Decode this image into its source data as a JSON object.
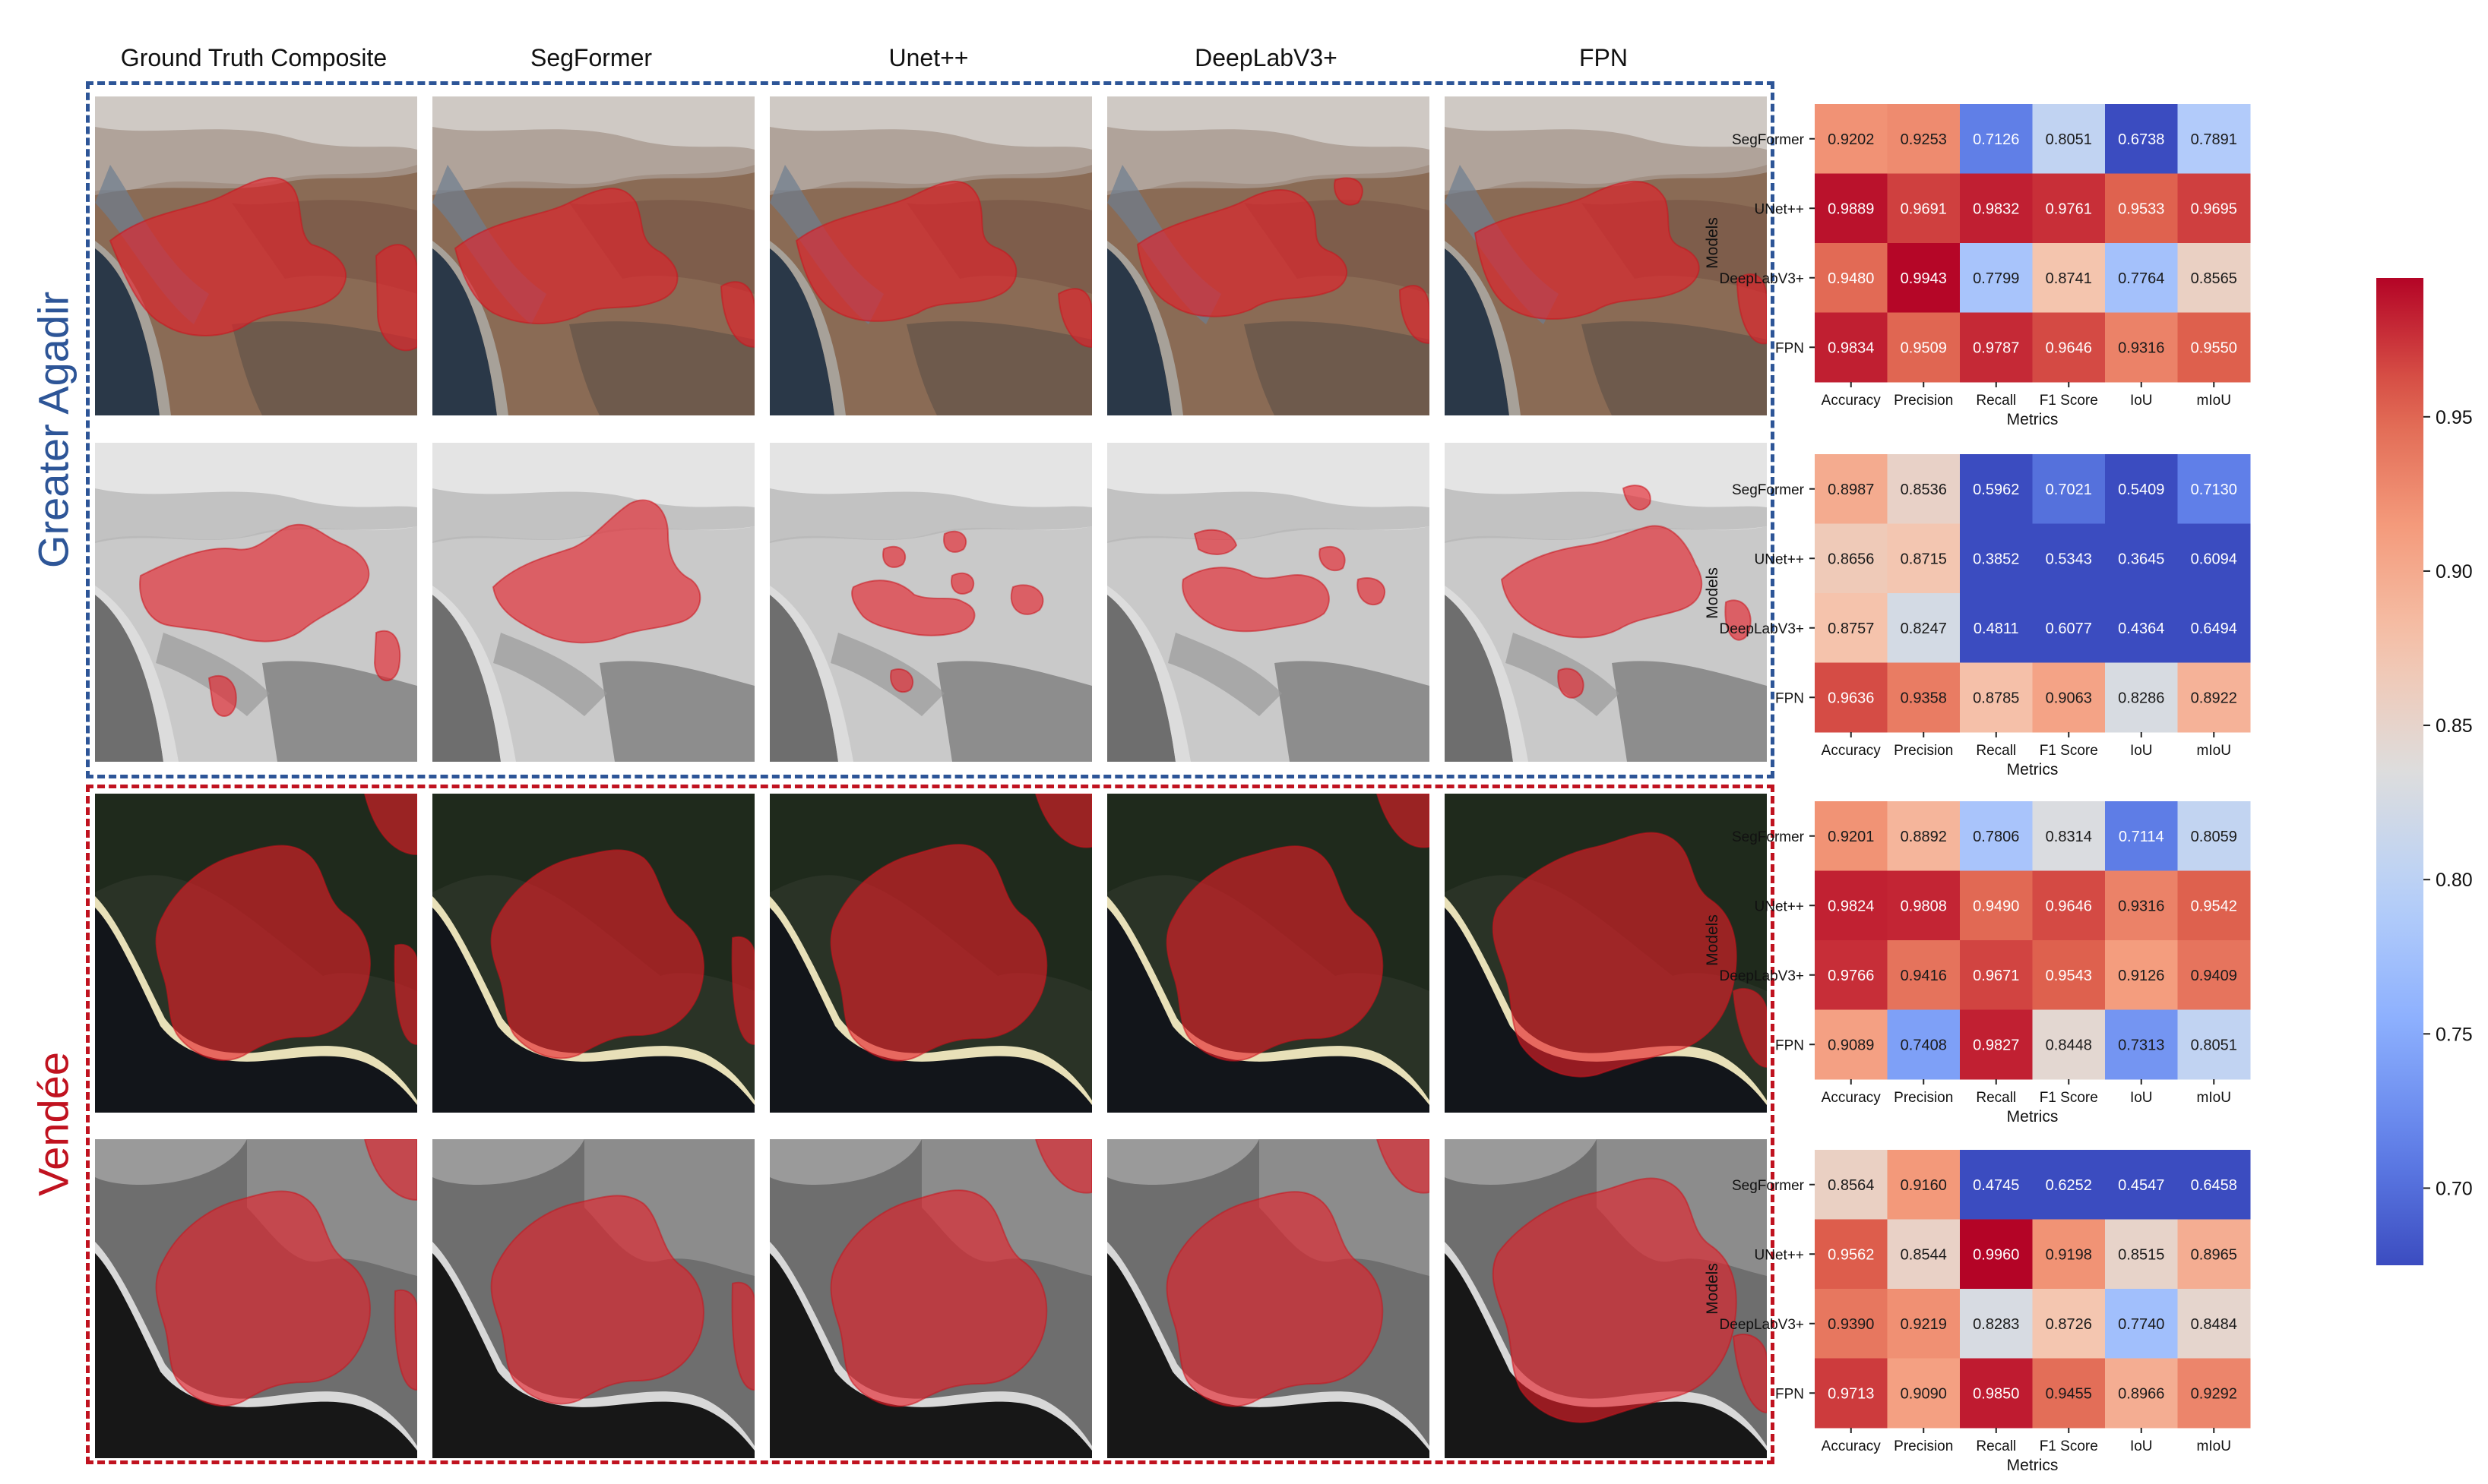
{
  "columns": [
    "Ground Truth Composite",
    "SegFormer",
    "Unet++",
    "DeepLabV3+",
    "FPN"
  ],
  "regions": [
    {
      "name": "Greater Agadir",
      "color": "#2d5597"
    },
    {
      "name": "Vendée",
      "color": "#c0121f"
    }
  ],
  "chart_data": [
    {
      "type": "heatmap",
      "region": "Greater Agadir",
      "imagery": "color composite",
      "rows": [
        "SegFormer",
        "UNet++",
        "DeepLabV3+",
        "FPN"
      ],
      "columns": [
        "Accuracy",
        "Precision",
        "Recall",
        "F1 Score",
        "IoU",
        "mIoU"
      ],
      "xlabel": "Metrics",
      "ylabel": "Models",
      "values": [
        [
          0.9202,
          0.9253,
          0.7126,
          0.8051,
          0.6738,
          0.7891
        ],
        [
          0.9889,
          0.9691,
          0.9832,
          0.9761,
          0.9533,
          0.9695
        ],
        [
          0.948,
          0.9943,
          0.7799,
          0.8741,
          0.7764,
          0.8565
        ],
        [
          0.9834,
          0.9509,
          0.9787,
          0.9646,
          0.9316,
          0.955
        ]
      ]
    },
    {
      "type": "heatmap",
      "region": "Greater Agadir",
      "imagery": "grayscale",
      "rows": [
        "SegFormer",
        "UNet++",
        "DeepLabV3+",
        "FPN"
      ],
      "columns": [
        "Accuracy",
        "Precision",
        "Recall",
        "F1 Score",
        "IoU",
        "mIoU"
      ],
      "xlabel": "Metrics",
      "ylabel": "Models",
      "values": [
        [
          0.8987,
          0.8536,
          0.5962,
          0.7021,
          0.5409,
          0.713
        ],
        [
          0.8656,
          0.8715,
          0.3852,
          0.5343,
          0.3645,
          0.6094
        ],
        [
          0.8757,
          0.8247,
          0.4811,
          0.6077,
          0.4364,
          0.6494
        ],
        [
          0.9636,
          0.9358,
          0.8785,
          0.9063,
          0.8286,
          0.8922
        ]
      ]
    },
    {
      "type": "heatmap",
      "region": "Vendée",
      "imagery": "color composite",
      "rows": [
        "SegFormer",
        "UNet++",
        "DeepLabV3+",
        "FPN"
      ],
      "columns": [
        "Accuracy",
        "Precision",
        "Recall",
        "F1 Score",
        "IoU",
        "mIoU"
      ],
      "xlabel": "Metrics",
      "ylabel": "Models",
      "values": [
        [
          0.9201,
          0.8892,
          0.7806,
          0.8314,
          0.7114,
          0.8059
        ],
        [
          0.9824,
          0.9808,
          0.949,
          0.9646,
          0.9316,
          0.9542
        ],
        [
          0.9766,
          0.9416,
          0.9671,
          0.9543,
          0.9126,
          0.9409
        ],
        [
          0.9089,
          0.7408,
          0.9827,
          0.8448,
          0.7313,
          0.8051
        ]
      ]
    },
    {
      "type": "heatmap",
      "region": "Vendée",
      "imagery": "grayscale",
      "rows": [
        "SegFormer",
        "UNet++",
        "DeepLabV3+",
        "FPN"
      ],
      "columns": [
        "Accuracy",
        "Precision",
        "Recall",
        "F1 Score",
        "IoU",
        "mIoU"
      ],
      "xlabel": "Metrics",
      "ylabel": "Models",
      "values": [
        [
          0.8564,
          0.916,
          0.4745,
          0.6252,
          0.4547,
          0.6458
        ],
        [
          0.9562,
          0.8544,
          0.996,
          0.9198,
          0.8515,
          0.8965
        ],
        [
          0.939,
          0.9219,
          0.8283,
          0.8726,
          0.774,
          0.8484
        ],
        [
          0.9713,
          0.909,
          0.985,
          0.9455,
          0.8966,
          0.9292
        ]
      ]
    }
  ],
  "colorbar": {
    "colormap": "coolwarm",
    "range": [
      0.675,
      0.995
    ],
    "ticks": [
      "0.70",
      "0.75",
      "0.80",
      "0.85",
      "0.90",
      "0.95"
    ]
  }
}
